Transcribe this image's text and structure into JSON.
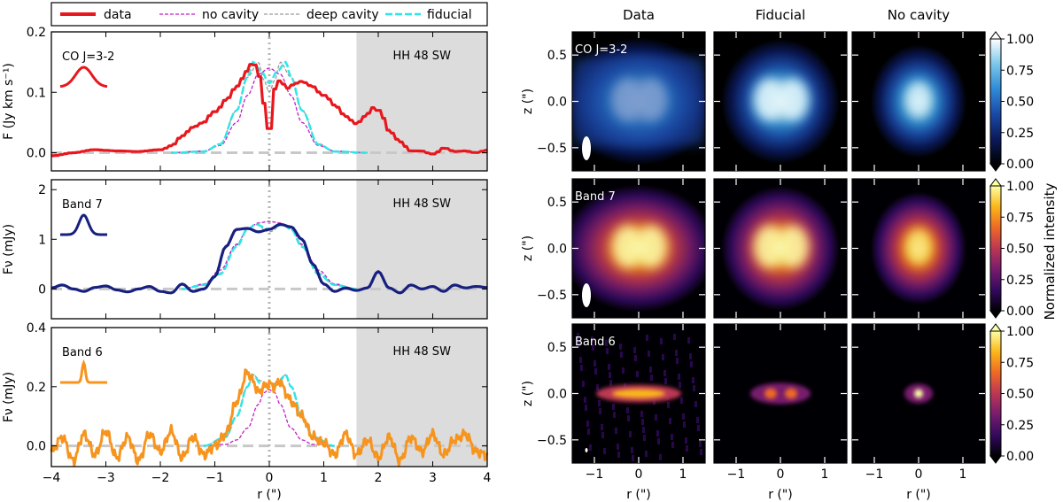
{
  "chart_data": [
    {
      "type": "line",
      "legend": {
        "position": "top-left",
        "entries": [
          {
            "label": "data",
            "style": "solid",
            "color": "#e8171d"
          },
          {
            "label": "no cavity",
            "style": "dashed",
            "color": "#c31fc6"
          },
          {
            "label": "deep cavity",
            "style": "dashed",
            "color": "#9a9a9a"
          },
          {
            "label": "fiducial",
            "style": "dashed",
            "color": "#2ee6e8"
          }
        ]
      },
      "panels": [
        {
          "id": "co",
          "label": "CO J=3-2",
          "ylabel": "F (Jy km s⁻¹)",
          "xlim": [
            -4,
            4
          ],
          "ylim": [
            -0.03,
            0.2
          ],
          "yticks": [
            "0.0",
            "0.1",
            "0.2"
          ],
          "ytick_values": [
            0,
            0.1,
            0.2
          ],
          "shaded_label": "HH 48 SW",
          "shaded_from": 1.6,
          "data_color": "#e8171d",
          "beam_sigma": 0.35,
          "series": {
            "data": {
              "x": [
                -4,
                -3.6,
                -3.2,
                -2.8,
                -2.4,
                -2,
                -1.8,
                -1.6,
                -1.4,
                -1.2,
                -1,
                -0.8,
                -0.6,
                -0.4,
                -0.3,
                -0.2,
                -0.1,
                0,
                0.1,
                0.2,
                0.3,
                0.4,
                0.6,
                0.8,
                1,
                1.2,
                1.4,
                1.6,
                1.8,
                1.9,
                2,
                2.2,
                2.4,
                2.6,
                2.8,
                3,
                3.2,
                3.4,
                3.6,
                3.8,
                4
              ],
              "y": [
                -0.005,
                0,
                0.005,
                0.003,
                0.002,
                0.005,
                0.012,
                0.028,
                0.042,
                0.05,
                0.068,
                0.088,
                0.11,
                0.135,
                0.15,
                0.14,
                0.085,
                0.04,
                0.11,
                0.122,
                0.105,
                0.112,
                0.118,
                0.11,
                0.095,
                0.078,
                0.06,
                0.048,
                0.062,
                0.075,
                0.07,
                0.035,
                0.018,
                0.003,
                0.003,
                -0.002,
                0.008,
                0.002,
                0.003,
                0.0,
                0.004
              ]
            },
            "no_cavity": {
              "x": [
                -1.8,
                -1.2,
                -0.9,
                -0.6,
                -0.4,
                -0.2,
                0,
                0.2,
                0.4,
                0.6,
                0.9,
                1.2,
                1.8
              ],
              "y": [
                0,
                0.003,
                0.012,
                0.05,
                0.095,
                0.13,
                0.14,
                0.13,
                0.095,
                0.05,
                0.012,
                0.003,
                0
              ]
            },
            "deep_cavity": {
              "x": [
                -1.8,
                -1.2,
                -0.9,
                -0.6,
                -0.4,
                -0.2,
                -0.1,
                0,
                0.1,
                0.2,
                0.4,
                0.6,
                0.9,
                1.2,
                1.8
              ],
              "y": [
                0,
                0.002,
                0.015,
                0.07,
                0.125,
                0.15,
                0.12,
                0.1,
                0.12,
                0.15,
                0.125,
                0.07,
                0.015,
                0.002,
                0
              ]
            },
            "fiducial": {
              "x": [
                -1.8,
                -1.2,
                -0.9,
                -0.6,
                -0.4,
                -0.3,
                -0.15,
                0,
                0.15,
                0.3,
                0.4,
                0.6,
                0.9,
                1.2,
                1.8
              ],
              "y": [
                0,
                0.002,
                0.014,
                0.07,
                0.125,
                0.15,
                0.135,
                0.115,
                0.135,
                0.15,
                0.125,
                0.07,
                0.014,
                0.002,
                0
              ]
            }
          }
        },
        {
          "id": "b7",
          "label": "Band 7",
          "ylabel": "Fν (mJy)",
          "xlim": [
            -4,
            4
          ],
          "ylim": [
            -0.6,
            2.2
          ],
          "yticks": [
            "0",
            "1",
            "2"
          ],
          "ytick_values": [
            0,
            1,
            2
          ],
          "shaded_label": "HH 48 SW",
          "shaded_from": 1.6,
          "data_color": "#17207f",
          "beam_sigma": 0.2,
          "series": {
            "data": {
              "x": [
                -4,
                -3.8,
                -3.6,
                -3.4,
                -3.2,
                -3,
                -2.8,
                -2.6,
                -2.4,
                -2.2,
                -2,
                -1.8,
                -1.6,
                -1.4,
                -1.2,
                -1,
                -0.8,
                -0.6,
                -0.4,
                -0.2,
                0,
                0.2,
                0.4,
                0.6,
                0.8,
                1,
                1.2,
                1.4,
                1.6,
                1.8,
                2,
                2.2,
                2.4,
                2.6,
                2.8,
                3,
                3.2,
                3.4,
                3.6,
                3.8,
                4
              ],
              "y": [
                0.02,
                0.08,
                0.0,
                -0.05,
                0.03,
                0.06,
                -0.02,
                -0.06,
                0.0,
                0.05,
                -0.05,
                -0.08,
                0.1,
                -0.05,
                0.0,
                0.25,
                0.85,
                1.2,
                1.22,
                1.15,
                1.2,
                1.3,
                1.25,
                1.0,
                0.5,
                0.1,
                -0.05,
                0.02,
                -0.03,
                0.02,
                0.35,
                0.02,
                -0.08,
                0.08,
                0.0,
                0.05,
                -0.05,
                0.08,
                0.02,
                0.05,
                0.03
              ]
            },
            "no_cavity": {
              "x": [
                -1.6,
                -1.2,
                -0.9,
                -0.6,
                -0.4,
                -0.2,
                0,
                0.2,
                0.4,
                0.6,
                0.9,
                1.2,
                1.6
              ],
              "y": [
                0,
                0.1,
                0.38,
                0.9,
                1.2,
                1.33,
                1.36,
                1.33,
                1.2,
                0.9,
                0.38,
                0.1,
                0
              ]
            },
            "deep_cavity": {
              "x": [
                -1.6,
                -1.2,
                -0.9,
                -0.6,
                -0.4,
                -0.25,
                0,
                0.25,
                0.4,
                0.6,
                0.9,
                1.2,
                1.6
              ],
              "y": [
                0,
                0.08,
                0.32,
                0.88,
                1.22,
                1.3,
                1.15,
                1.3,
                1.22,
                0.88,
                0.32,
                0.08,
                0
              ]
            },
            "fiducial": {
              "x": [
                -1.6,
                -1.2,
                -0.9,
                -0.6,
                -0.4,
                -0.25,
                0,
                0.25,
                0.4,
                0.6,
                0.9,
                1.2,
                1.6
              ],
              "y": [
                0,
                0.08,
                0.3,
                0.85,
                1.2,
                1.3,
                1.2,
                1.3,
                1.2,
                0.85,
                0.3,
                0.08,
                0
              ]
            }
          }
        },
        {
          "id": "b6",
          "label": "Band 6",
          "ylabel": "Fν (mJy)",
          "xlim": [
            -4,
            4
          ],
          "ylim": [
            -0.07,
            0.4
          ],
          "yticks": [
            "0.0",
            "0.2",
            "0.4"
          ],
          "ytick_values": [
            0,
            0.2,
            0.4
          ],
          "shaded_label": "HH 48 SW",
          "shaded_from": 1.6,
          "data_color": "#f7941d",
          "beam_sigma": 0.07,
          "series": {
            "data": {
              "x": [
                -4,
                -3.8,
                -3.6,
                -3.4,
                -3.2,
                -3,
                -2.8,
                -2.6,
                -2.4,
                -2.2,
                -2,
                -1.8,
                -1.6,
                -1.4,
                -1.2,
                -1,
                -0.8,
                -0.6,
                -0.4,
                -0.3,
                -0.2,
                -0.1,
                0,
                0.1,
                0.2,
                0.3,
                0.4,
                0.6,
                0.8,
                1,
                1.2,
                1.4,
                1.6,
                1.8,
                2,
                2.2,
                2.4,
                2.6,
                2.8,
                3,
                3.2,
                3.4,
                3.6,
                3.8,
                4
              ],
              "y": [
                -0.02,
                0.03,
                -0.05,
                0.04,
                -0.03,
                0.05,
                -0.04,
                0.03,
                -0.05,
                0.04,
                -0.02,
                0.05,
                -0.04,
                0.03,
                -0.03,
                0.0,
                0.04,
                0.15,
                0.25,
                0.22,
                0.18,
                0.2,
                0.21,
                0.2,
                0.22,
                0.18,
                0.15,
                0.1,
                0.03,
                0.01,
                -0.03,
                0.04,
                -0.03,
                0.02,
                -0.04,
                0.03,
                -0.05,
                0.03,
                -0.02,
                0.04,
                -0.03,
                0.02,
                0.04,
                -0.02,
                -0.03
              ]
            },
            "no_cavity": {
              "x": [
                -1.2,
                -0.8,
                -0.6,
                -0.4,
                -0.2,
                -0.1,
                0,
                0.1,
                0.2,
                0.4,
                0.6,
                0.8,
                1.2
              ],
              "y": [
                0,
                0.005,
                0.02,
                0.06,
                0.14,
                0.18,
                0.19,
                0.18,
                0.14,
                0.06,
                0.02,
                0.005,
                0
              ]
            },
            "deep_cavity": {
              "x": [
                -1.2,
                -0.8,
                -0.6,
                -0.4,
                -0.3,
                -0.15,
                0,
                0.15,
                0.3,
                0.4,
                0.6,
                0.8,
                1.2
              ],
              "y": [
                0,
                0.03,
                0.1,
                0.2,
                0.24,
                0.22,
                0.2,
                0.22,
                0.24,
                0.2,
                0.1,
                0.03,
                0
              ]
            },
            "fiducial": {
              "x": [
                -1.2,
                -0.8,
                -0.6,
                -0.4,
                -0.3,
                -0.15,
                0,
                0.15,
                0.3,
                0.4,
                0.6,
                0.8,
                1.2
              ],
              "y": [
                0,
                0.03,
                0.1,
                0.2,
                0.24,
                0.21,
                0.2,
                0.21,
                0.24,
                0.2,
                0.1,
                0.03,
                0
              ]
            }
          }
        }
      ],
      "xlabel": "r (\")",
      "xticks": [
        "−4",
        "−3",
        "−2",
        "−1",
        "0",
        "1",
        "2",
        "3",
        "4"
      ],
      "xtick_values": [
        -4,
        -3,
        -2,
        -1,
        0,
        1,
        2,
        3,
        4
      ]
    },
    {
      "type": "heatmap",
      "column_titles": [
        "Data",
        "Fiducial",
        "No cavity"
      ],
      "row_labels": [
        "CO J=3-2",
        "Band 7",
        "Band 6"
      ],
      "xlabel": "r (\")",
      "ylabel": "z (\")",
      "xlim": [
        -1.5,
        1.5
      ],
      "ylim": [
        -0.75,
        0.75
      ],
      "xticks": [
        "−1",
        "0",
        "1"
      ],
      "xtick_values": [
        -1,
        0,
        1
      ],
      "yticks": [
        "0.5",
        "0.0",
        "−0.5"
      ],
      "ytick_values": [
        0.5,
        0,
        -0.5
      ],
      "colorbar": {
        "label": "Normalized intensity",
        "range": [
          0,
          1
        ],
        "ticks": [
          "1.00",
          "0.75",
          "0.50",
          "0.25",
          "0.00"
        ],
        "tick_values": [
          1,
          0.75,
          0.5,
          0.25,
          0
        ]
      },
      "colormaps": {
        "blue": [
          "#000000",
          "#0b1a5c",
          "#1a4aa6",
          "#2f8bd8",
          "#7cc8ea",
          "#ffffff"
        ],
        "inferno": [
          "#000004",
          "#320a5e",
          "#781c6d",
          "#bc3754",
          "#ed6925",
          "#fbb61a",
          "#fcffa4"
        ]
      },
      "beams": [
        {
          "row": 0,
          "major": 0.27,
          "minor": 0.1
        },
        {
          "row": 1,
          "major": 0.27,
          "minor": 0.1
        },
        {
          "row": 2,
          "major": 0.05,
          "minor": 0.03
        }
      ]
    }
  ]
}
